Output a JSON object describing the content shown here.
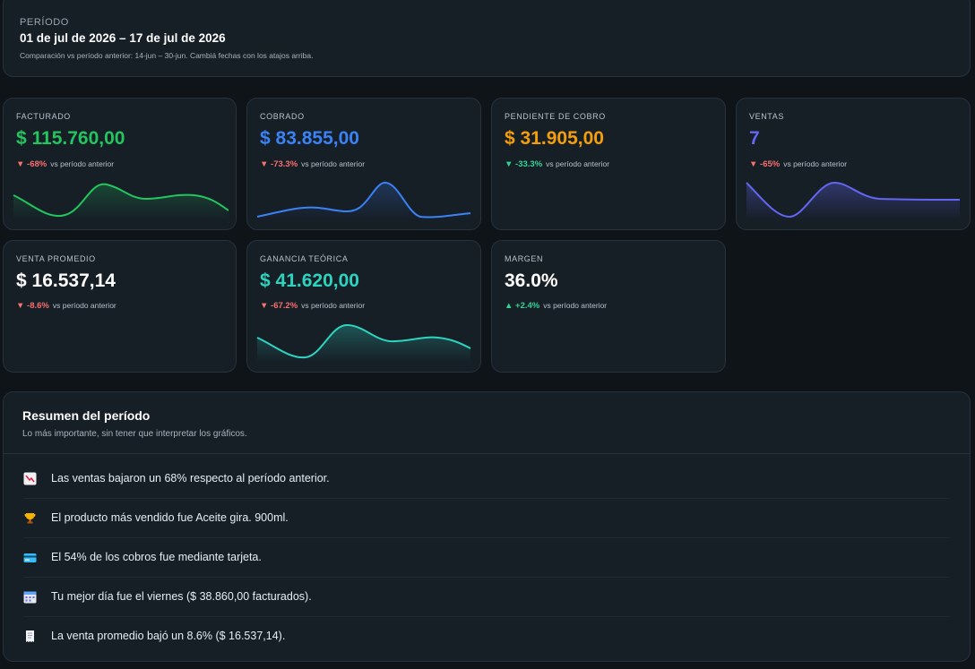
{
  "period": {
    "label": "PERÍODO",
    "range": "01 de jul de 2026 – 17 de jul de 2026",
    "note": "Comparación vs período anterior: 14-jun – 30-jun. Cambiá fechas con los atajos arriba."
  },
  "kpis": [
    {
      "title": "FACTURADO",
      "value": "$ 115.760,00",
      "delta_arrow": "▼",
      "delta": "-68%",
      "vs": "vs período anterior",
      "color": "#22c55e"
    },
    {
      "title": "COBRADO",
      "value": "$ 83.855,00",
      "delta_arrow": "▼",
      "delta": "-73.3%",
      "vs": "vs período anterior",
      "color": "#3b82f6"
    },
    {
      "title": "PENDIENTE DE COBRO",
      "value": "$ 31.905,00",
      "delta_arrow": "▼",
      "delta": "-33.3%",
      "vs": "vs período anterior",
      "color": "#f59e0b"
    },
    {
      "title": "VENTAS",
      "value": "7",
      "delta_arrow": "▼",
      "delta": "-65%",
      "vs": "vs período anterior",
      "color": "#6366f1"
    },
    {
      "title": "VENTA PROMEDIO",
      "value": "$ 16.537,14",
      "delta_arrow": "▼",
      "delta": "-8.6%",
      "vs": "vs período anterior",
      "color": "#ffffff"
    },
    {
      "title": "GANANCIA TEÓRICA",
      "value": "$ 41.620,00",
      "delta_arrow": "▼",
      "delta": "-67.2%",
      "vs": "vs período anterior",
      "color": "#2dd4bf"
    },
    {
      "title": "MARGEN",
      "value": "36.0%",
      "delta_arrow": "▲",
      "delta": "+2.4%",
      "vs": "vs período anterior",
      "color": "#ffffff"
    }
  ],
  "summary": {
    "title": "Resumen del período",
    "subtitle": "Lo más importante, sin tener que interpretar los gráficos.",
    "items": [
      {
        "icon": "chart-decreasing-icon",
        "text": "Las ventas bajaron un 68% respecto al período anterior."
      },
      {
        "icon": "trophy-icon",
        "text": "El producto más vendido fue Aceite gira. 900ml."
      },
      {
        "icon": "credit-card-icon",
        "text": "El 54% de los cobros fue mediante tarjeta."
      },
      {
        "icon": "calendar-icon",
        "text": "Tu mejor día fue el viernes ($ 38.860,00 facturados)."
      },
      {
        "icon": "receipt-icon",
        "text": "La venta promedio bajó un 8.6% ($ 16.537,14)."
      }
    ]
  }
}
